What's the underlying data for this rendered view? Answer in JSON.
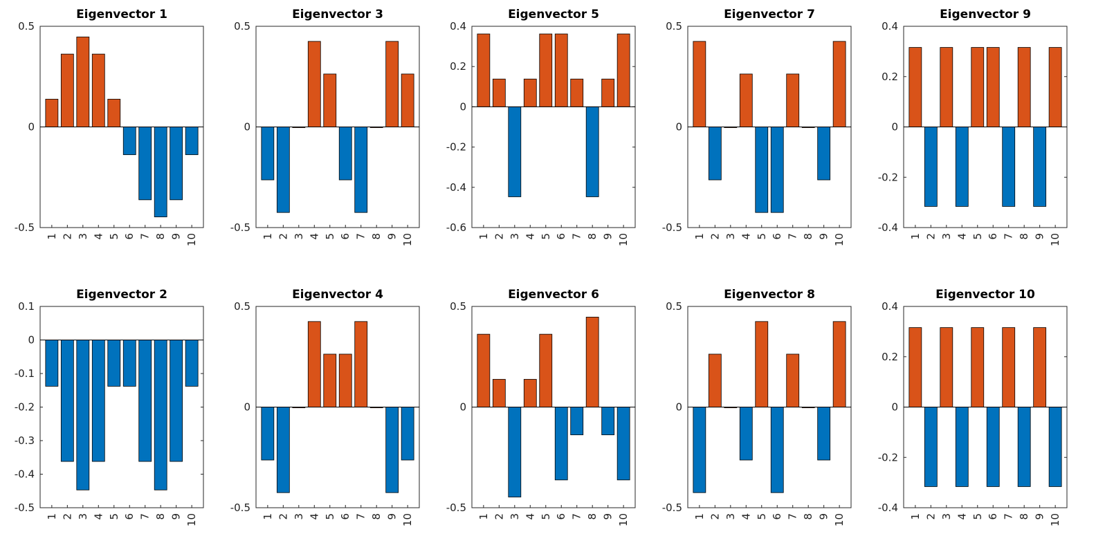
{
  "colors": {
    "positive": "#D95319",
    "negative": "#0072BD",
    "edge": "#000000",
    "axis": "#262626"
  },
  "chart_data": [
    {
      "type": "bar",
      "title": "Eigenvector 1",
      "categories": [
        "1",
        "2",
        "3",
        "4",
        "5",
        "6",
        "7",
        "8",
        "9",
        "10"
      ],
      "values": [
        0.138,
        0.362,
        0.447,
        0.362,
        0.138,
        -0.138,
        -0.362,
        -0.447,
        -0.362,
        -0.138
      ],
      "ylim": [
        -0.5,
        0.5
      ],
      "yticks": [
        -0.5,
        0,
        0.5
      ],
      "ytick_labels": [
        "-0.5",
        "0",
        "0.5"
      ]
    },
    {
      "type": "bar",
      "title": "Eigenvector 3",
      "categories": [
        "1",
        "2",
        "3",
        "4",
        "5",
        "6",
        "7",
        "8",
        "9",
        "10"
      ],
      "values": [
        -0.263,
        -0.425,
        0.0,
        0.425,
        0.263,
        -0.263,
        -0.425,
        0.0,
        0.425,
        0.263
      ],
      "ylim": [
        -0.5,
        0.5
      ],
      "yticks": [
        -0.5,
        0,
        0.5
      ],
      "ytick_labels": [
        "-0.5",
        "0",
        "0.5"
      ]
    },
    {
      "type": "bar",
      "title": "Eigenvector 5",
      "categories": [
        "1",
        "2",
        "3",
        "4",
        "5",
        "6",
        "7",
        "8",
        "9",
        "10"
      ],
      "values": [
        0.362,
        0.138,
        -0.447,
        0.138,
        0.362,
        0.362,
        0.138,
        -0.447,
        0.138,
        0.362
      ],
      "ylim": [
        -0.6,
        0.4
      ],
      "yticks": [
        -0.6,
        -0.4,
        -0.2,
        0,
        0.2,
        0.4
      ],
      "ytick_labels": [
        "-0.6",
        "-0.4",
        "-0.2",
        "0",
        "0.2",
        "0.4"
      ]
    },
    {
      "type": "bar",
      "title": "Eigenvector 7",
      "categories": [
        "1",
        "2",
        "3",
        "4",
        "5",
        "6",
        "7",
        "8",
        "9",
        "10"
      ],
      "values": [
        0.425,
        -0.263,
        0.0,
        0.263,
        -0.425,
        -0.425,
        0.263,
        0.0,
        -0.263,
        0.425
      ],
      "ylim": [
        -0.5,
        0.5
      ],
      "yticks": [
        -0.5,
        0,
        0.5
      ],
      "ytick_labels": [
        "-0.5",
        "0",
        "0.5"
      ]
    },
    {
      "type": "bar",
      "title": "Eigenvector 9",
      "categories": [
        "1",
        "2",
        "3",
        "4",
        "5",
        "6",
        "7",
        "8",
        "9",
        "10"
      ],
      "values": [
        0.316,
        -0.316,
        0.316,
        -0.316,
        0.316,
        0.316,
        -0.316,
        0.316,
        -0.316,
        0.316
      ],
      "ylim": [
        -0.4,
        0.4
      ],
      "yticks": [
        -0.4,
        -0.2,
        0,
        0.2,
        0.4
      ],
      "ytick_labels": [
        "-0.4",
        "-0.2",
        "0",
        "0.2",
        "0.4"
      ]
    },
    {
      "type": "bar",
      "title": "Eigenvector 2",
      "categories": [
        "1",
        "2",
        "3",
        "4",
        "5",
        "6",
        "7",
        "8",
        "9",
        "10"
      ],
      "values": [
        -0.138,
        -0.362,
        -0.447,
        -0.362,
        -0.138,
        -0.138,
        -0.362,
        -0.447,
        -0.362,
        -0.138
      ],
      "ylim": [
        -0.5,
        0.1
      ],
      "yticks": [
        -0.5,
        -0.4,
        -0.3,
        -0.2,
        -0.1,
        0,
        0.1
      ],
      "ytick_labels": [
        "-0.5",
        "-0.4",
        "-0.3",
        "-0.2",
        "-0.1",
        "0",
        "0.1"
      ]
    },
    {
      "type": "bar",
      "title": "Eigenvector 4",
      "categories": [
        "1",
        "2",
        "3",
        "4",
        "5",
        "6",
        "7",
        "8",
        "9",
        "10"
      ],
      "values": [
        -0.263,
        -0.425,
        0.0,
        0.425,
        0.263,
        0.263,
        0.425,
        0.0,
        -0.425,
        -0.263
      ],
      "ylim": [
        -0.5,
        0.5
      ],
      "yticks": [
        -0.5,
        0,
        0.5
      ],
      "ytick_labels": [
        "-0.5",
        "0",
        "0.5"
      ]
    },
    {
      "type": "bar",
      "title": "Eigenvector 6",
      "categories": [
        "1",
        "2",
        "3",
        "4",
        "5",
        "6",
        "7",
        "8",
        "9",
        "10"
      ],
      "values": [
        0.362,
        0.138,
        -0.447,
        0.138,
        0.362,
        -0.362,
        -0.138,
        0.447,
        -0.138,
        -0.362
      ],
      "ylim": [
        -0.5,
        0.5
      ],
      "yticks": [
        -0.5,
        0,
        0.5
      ],
      "ytick_labels": [
        "-0.5",
        "0",
        "0.5"
      ]
    },
    {
      "type": "bar",
      "title": "Eigenvector 8",
      "categories": [
        "1",
        "2",
        "3",
        "4",
        "5",
        "6",
        "7",
        "8",
        "9",
        "10"
      ],
      "values": [
        -0.425,
        0.263,
        0.0,
        -0.263,
        0.425,
        -0.425,
        0.263,
        0.0,
        -0.263,
        0.425
      ],
      "ylim": [
        -0.5,
        0.5
      ],
      "yticks": [
        -0.5,
        0,
        0.5
      ],
      "ytick_labels": [
        "-0.5",
        "0",
        "0.5"
      ]
    },
    {
      "type": "bar",
      "title": "Eigenvector 10",
      "categories": [
        "1",
        "2",
        "3",
        "4",
        "5",
        "6",
        "7",
        "8",
        "9",
        "10"
      ],
      "values": [
        0.316,
        -0.316,
        0.316,
        -0.316,
        0.316,
        -0.316,
        0.316,
        -0.316,
        0.316,
        -0.316
      ],
      "ylim": [
        -0.4,
        0.4
      ],
      "yticks": [
        -0.4,
        -0.2,
        0,
        0.2,
        0.4
      ],
      "ytick_labels": [
        "-0.4",
        "-0.2",
        "0",
        "0.2",
        "0.4"
      ]
    }
  ]
}
